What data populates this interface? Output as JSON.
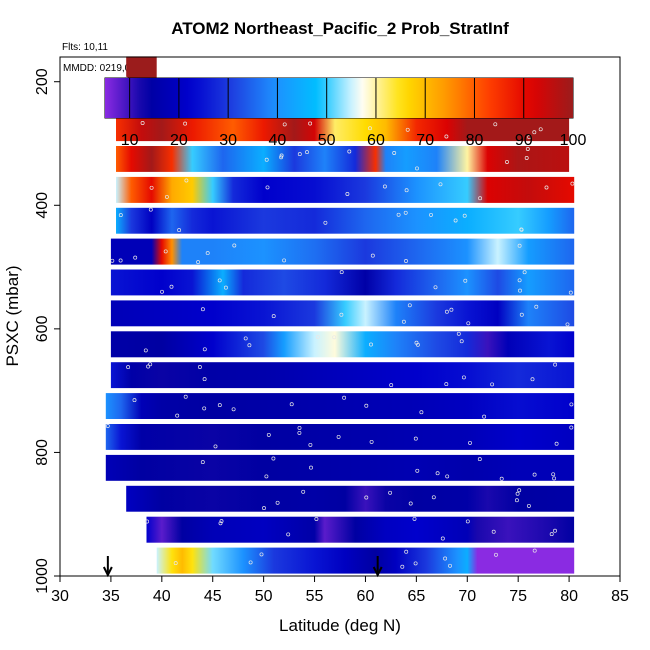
{
  "chart_data": {
    "type": "heatmap",
    "title": "ATOM2 Northeast_Pacific_2 Prob_StratInf",
    "annotations": [
      "Flts: 10,11",
      "MMDD: 0219,0221"
    ],
    "xlabel": "Latitude (deg N)",
    "ylabel": "PSXC (mbar)",
    "xlim": [
      30,
      85
    ],
    "ylim": [
      1000,
      160
    ],
    "x_ticks": [
      "30",
      "35",
      "40",
      "45",
      "50",
      "55",
      "60",
      "65",
      "70",
      "75",
      "80",
      "85"
    ],
    "y_ticks": [
      "200",
      "400",
      "600",
      "800",
      "1000"
    ],
    "colorbar": {
      "range": [
        5,
        100
      ],
      "tick_labels": [
        "10",
        "20",
        "30",
        "40",
        "50",
        "60",
        "70",
        "80",
        "90",
        "100"
      ],
      "colors": [
        "#8a2be2",
        "#0000a0",
        "#0000cd",
        "#1e40e0",
        "#1e90ff",
        "#00bfff",
        "#ffffff",
        "#ffe000",
        "#ff9900",
        "#ff4000",
        "#e00000",
        "#9b1c1c"
      ]
    },
    "layers": [
      {
        "p": 180,
        "x0": 36.5,
        "x1": 39.5,
        "stops": [
          [
            36.5,
            100
          ],
          [
            39.5,
            100
          ]
        ]
      },
      {
        "p": 225,
        "x0": 36,
        "x1": 79,
        "stops": [
          [
            36,
            99
          ],
          [
            79,
            99
          ]
        ]
      },
      {
        "p": 275,
        "x0": 35.5,
        "x1": 80,
        "stops": [
          [
            35.5,
            85
          ],
          [
            38,
            95
          ],
          [
            40,
            99
          ],
          [
            43,
            88
          ],
          [
            47,
            80
          ],
          [
            50,
            88
          ],
          [
            53,
            99
          ],
          [
            55,
            93
          ],
          [
            57,
            62
          ],
          [
            60,
            66
          ],
          [
            62,
            70
          ],
          [
            65,
            86
          ],
          [
            68,
            92
          ],
          [
            70,
            99
          ],
          [
            80,
            99
          ]
        ]
      },
      {
        "p": 325,
        "x0": 35.5,
        "x1": 80,
        "stops": [
          [
            35.5,
            80
          ],
          [
            37,
            90
          ],
          [
            39,
            99
          ],
          [
            41,
            85
          ],
          [
            43,
            50
          ],
          [
            46,
            35
          ],
          [
            50,
            45
          ],
          [
            53,
            30
          ],
          [
            56,
            38
          ],
          [
            59,
            28
          ],
          [
            61,
            85
          ],
          [
            62,
            38
          ],
          [
            64,
            42
          ],
          [
            67,
            38
          ],
          [
            70,
            60
          ],
          [
            72,
            92
          ],
          [
            75,
            98
          ],
          [
            80,
            96
          ]
        ]
      },
      {
        "p": 375,
        "x0": 35.5,
        "x1": 80.5,
        "stops": [
          [
            35.5,
            55
          ],
          [
            37,
            80
          ],
          [
            39,
            90
          ],
          [
            41,
            72
          ],
          [
            43,
            68
          ],
          [
            45,
            50
          ],
          [
            47,
            28
          ],
          [
            50,
            22
          ],
          [
            55,
            24
          ],
          [
            60,
            30
          ],
          [
            65,
            40
          ],
          [
            70,
            50
          ],
          [
            72,
            92
          ],
          [
            76,
            95
          ],
          [
            80.5,
            90
          ]
        ]
      },
      {
        "p": 425,
        "x0": 35.5,
        "x1": 80.5,
        "stops": [
          [
            35.5,
            45
          ],
          [
            37,
            30
          ],
          [
            39,
            20
          ],
          [
            41,
            35
          ],
          [
            43,
            28
          ],
          [
            45,
            25
          ],
          [
            50,
            30
          ],
          [
            55,
            28
          ],
          [
            60,
            35
          ],
          [
            65,
            40
          ],
          [
            70,
            45
          ],
          [
            75,
            50
          ],
          [
            78,
            42
          ],
          [
            80.5,
            35
          ]
        ]
      },
      {
        "p": 475,
        "x0": 35,
        "x1": 80.5,
        "stops": [
          [
            35,
            18
          ],
          [
            39,
            18
          ],
          [
            40,
            90
          ],
          [
            41,
            75
          ],
          [
            42,
            38
          ],
          [
            45,
            38
          ],
          [
            50,
            40
          ],
          [
            55,
            36
          ],
          [
            60,
            30
          ],
          [
            65,
            35
          ],
          [
            70,
            40
          ],
          [
            73,
            55
          ],
          [
            76,
            42
          ],
          [
            80.5,
            35
          ]
        ]
      },
      {
        "p": 525,
        "x0": 35,
        "x1": 80.5,
        "stops": [
          [
            35,
            25
          ],
          [
            40,
            22
          ],
          [
            43,
            25
          ],
          [
            46,
            45
          ],
          [
            48,
            28
          ],
          [
            52,
            32
          ],
          [
            56,
            28
          ],
          [
            60,
            15
          ],
          [
            63,
            28
          ],
          [
            67,
            35
          ],
          [
            70,
            40
          ],
          [
            73,
            32
          ],
          [
            76,
            42
          ],
          [
            80.5,
            35
          ]
        ]
      },
      {
        "p": 575,
        "x0": 35,
        "x1": 80.5,
        "stops": [
          [
            35,
            18
          ],
          [
            40,
            20
          ],
          [
            45,
            22
          ],
          [
            50,
            25
          ],
          [
            55,
            30
          ],
          [
            58,
            50
          ],
          [
            60,
            55
          ],
          [
            63,
            38
          ],
          [
            67,
            30
          ],
          [
            70,
            25
          ],
          [
            73,
            20
          ],
          [
            76,
            38
          ],
          [
            80.5,
            32
          ]
        ]
      },
      {
        "p": 625,
        "x0": 35,
        "x1": 80.5,
        "stops": [
          [
            35,
            15
          ],
          [
            40,
            14
          ],
          [
            45,
            22
          ],
          [
            50,
            32
          ],
          [
            52,
            42
          ],
          [
            55,
            55
          ],
          [
            57,
            58
          ],
          [
            60,
            45
          ],
          [
            63,
            38
          ],
          [
            67,
            32
          ],
          [
            70,
            28
          ],
          [
            72,
            10
          ],
          [
            74,
            18
          ],
          [
            78,
            25
          ],
          [
            80.5,
            22
          ]
        ]
      },
      {
        "p": 675,
        "x0": 35,
        "x1": 80.5,
        "stops": [
          [
            35,
            25
          ],
          [
            37,
            15
          ],
          [
            40,
            13
          ],
          [
            45,
            15
          ],
          [
            50,
            16
          ],
          [
            55,
            18
          ],
          [
            60,
            20
          ],
          [
            65,
            22
          ],
          [
            70,
            24
          ],
          [
            75,
            28
          ],
          [
            80.5,
            25
          ]
        ]
      },
      {
        "p": 725,
        "x0": 34.5,
        "x1": 80.5,
        "stops": [
          [
            34.5,
            40
          ],
          [
            36,
            35
          ],
          [
            38,
            18
          ],
          [
            40,
            15
          ],
          [
            45,
            14
          ],
          [
            50,
            15
          ],
          [
            55,
            16
          ],
          [
            60,
            17
          ],
          [
            65,
            18
          ],
          [
            70,
            20
          ],
          [
            75,
            24
          ],
          [
            80.5,
            22
          ]
        ]
      },
      {
        "p": 775,
        "x0": 34.5,
        "x1": 80.5,
        "stops": [
          [
            34.5,
            35
          ],
          [
            36,
            25
          ],
          [
            38,
            15
          ],
          [
            45,
            13
          ],
          [
            50,
            14
          ],
          [
            55,
            15
          ],
          [
            60,
            16
          ],
          [
            65,
            17
          ],
          [
            70,
            18
          ],
          [
            75,
            22
          ],
          [
            80.5,
            20
          ]
        ]
      },
      {
        "p": 825,
        "x0": 34.5,
        "x1": 80.5,
        "stops": [
          [
            34.5,
            18
          ],
          [
            38,
            14
          ],
          [
            45,
            13
          ],
          [
            50,
            14
          ],
          [
            55,
            15
          ],
          [
            60,
            16
          ],
          [
            65,
            17
          ],
          [
            70,
            16
          ],
          [
            75,
            18
          ],
          [
            80.5,
            18
          ]
        ]
      },
      {
        "p": 875,
        "x0": 36.5,
        "x1": 80.5,
        "stops": [
          [
            36.5,
            20
          ],
          [
            40,
            14
          ],
          [
            45,
            13
          ],
          [
            50,
            14
          ],
          [
            55,
            15
          ],
          [
            58,
            14
          ],
          [
            60,
            10
          ],
          [
            62,
            13
          ],
          [
            65,
            14
          ],
          [
            70,
            15
          ],
          [
            72,
            12
          ],
          [
            75,
            14
          ],
          [
            80.5,
            15
          ]
        ]
      },
      {
        "p": 925,
        "x0": 38.5,
        "x1": 80.5,
        "stops": [
          [
            38.5,
            22
          ],
          [
            40,
            8
          ],
          [
            42,
            14
          ],
          [
            45,
            18
          ],
          [
            50,
            20
          ],
          [
            55,
            15
          ],
          [
            56,
            8
          ],
          [
            59,
            14
          ],
          [
            62,
            20
          ],
          [
            65,
            22
          ],
          [
            70,
            18
          ],
          [
            71,
            12
          ],
          [
            74,
            10
          ],
          [
            78,
            12
          ],
          [
            80.5,
            14
          ]
        ]
      },
      {
        "p": 975,
        "x0": 39.5,
        "x1": 80.5,
        "stops": [
          [
            39.5,
            55
          ],
          [
            41,
            65
          ],
          [
            42,
            70
          ],
          [
            43,
            65
          ],
          [
            45,
            52
          ],
          [
            48,
            40
          ],
          [
            51,
            30
          ],
          [
            55,
            25
          ],
          [
            58,
            20
          ],
          [
            61,
            14
          ],
          [
            63,
            20
          ],
          [
            66,
            30
          ],
          [
            69,
            40
          ],
          [
            70,
            45
          ],
          [
            71,
            5
          ],
          [
            80.5,
            5
          ]
        ]
      }
    ],
    "markers": [
      34.7,
      61.2
    ]
  }
}
